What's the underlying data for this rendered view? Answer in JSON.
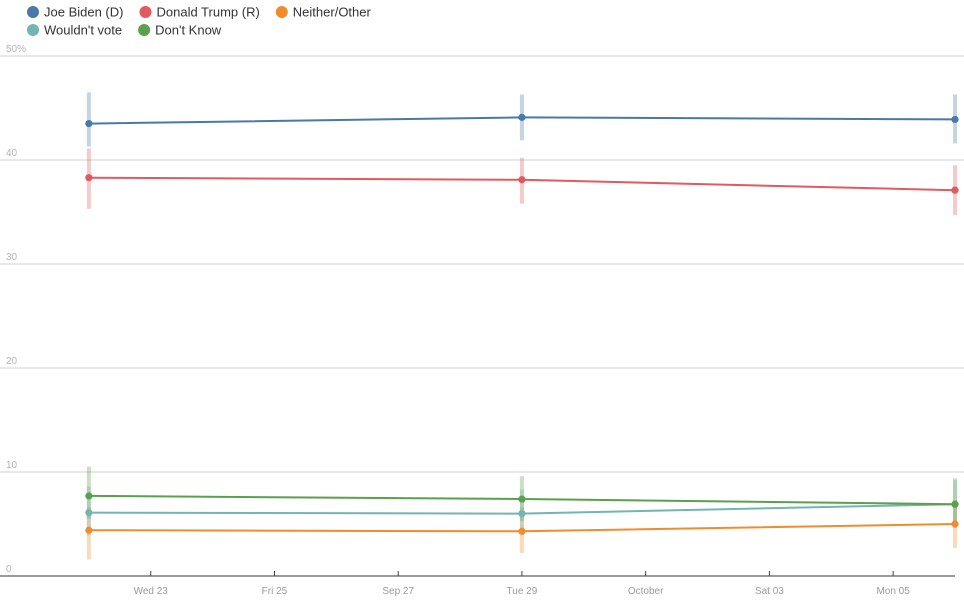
{
  "chart_data": {
    "type": "line",
    "title": "",
    "xlabel": "",
    "ylabel": "",
    "y_ticks": [
      {
        "value": 0,
        "label": "0"
      },
      {
        "value": 10,
        "label": "10"
      },
      {
        "value": 20,
        "label": "20"
      },
      {
        "value": 30,
        "label": "30"
      },
      {
        "value": 40,
        "label": "40"
      },
      {
        "value": 50,
        "label": "50%"
      }
    ],
    "ylim": [
      0,
      50
    ],
    "xlim": [
      "2020-09-21",
      "2020-10-06"
    ],
    "x_ticks": [
      {
        "date": "2020-09-23",
        "label": "Wed 23"
      },
      {
        "date": "2020-09-25",
        "label": "Fri 25"
      },
      {
        "date": "2020-09-27",
        "label": "Sep 27"
      },
      {
        "date": "2020-09-29",
        "label": "Tue 29"
      },
      {
        "date": "2020-10-01",
        "label": "October"
      },
      {
        "date": "2020-10-03",
        "label": "Sat 03"
      },
      {
        "date": "2020-10-05",
        "label": "Mon 05"
      }
    ],
    "x": [
      "2020-09-22",
      "2020-09-29",
      "2020-10-06"
    ],
    "grid": true,
    "legend": "top-left",
    "series": [
      {
        "name": "Joe Biden (D)",
        "color": "#4a78a8",
        "values": [
          43.5,
          44.1,
          43.9
        ],
        "err_low": [
          41.3,
          41.9,
          41.6
        ],
        "err_high": [
          46.5,
          46.3,
          46.3
        ]
      },
      {
        "name": "Donald Trump (R)",
        "color": "#e05a5e",
        "values": [
          38.3,
          38.1,
          37.1
        ],
        "err_low": [
          35.3,
          35.8,
          34.7
        ],
        "err_high": [
          41.1,
          40.2,
          39.5
        ]
      },
      {
        "name": "Neither/Other",
        "color": "#f08c2b",
        "values": [
          4.4,
          4.3,
          5.0
        ],
        "err_low": [
          1.6,
          2.2,
          2.7
        ],
        "err_high": [
          6.6,
          6.6,
          7.3
        ]
      },
      {
        "name": "Wouldn't vote",
        "color": "#73b5b1",
        "values": [
          6.1,
          6.0,
          6.9
        ],
        "err_low": [
          3.9,
          4.0,
          4.6
        ],
        "err_high": [
          8.6,
          8.3,
          9.2
        ]
      },
      {
        "name": "Don't Know",
        "color": "#5aa04f",
        "values": [
          7.7,
          7.4,
          6.9
        ],
        "err_low": [
          5.5,
          5.3,
          4.8
        ],
        "err_high": [
          10.5,
          9.6,
          9.4
        ]
      }
    ]
  }
}
